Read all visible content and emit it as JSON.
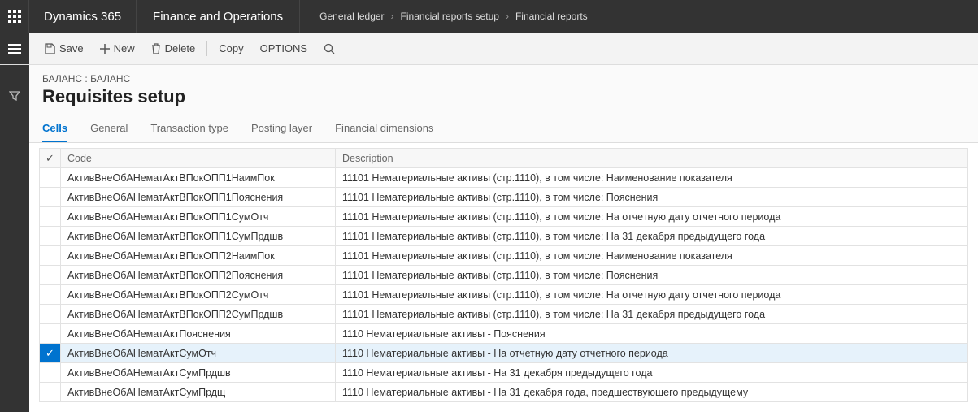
{
  "topbar": {
    "brand": "Dynamics 365",
    "module": "Finance and Operations",
    "breadcrumb": [
      "General ledger",
      "Financial reports setup",
      "Financial reports"
    ]
  },
  "toolbar": {
    "save": "Save",
    "new": "New",
    "delete": "Delete",
    "copy": "Copy",
    "options": "OPTIONS"
  },
  "heading": {
    "context": "БАЛАНС : БАЛАНС",
    "title": "Requisites setup"
  },
  "tabs": [
    "Cells",
    "General",
    "Transaction type",
    "Posting layer",
    "Financial dimensions"
  ],
  "active_tab_index": 0,
  "grid": {
    "columns": [
      "Code",
      "Description"
    ],
    "selected_index": 9,
    "rows": [
      {
        "code": "АктивВнеОбАНематАктВПокОПП1НаимПок",
        "desc": "11101 Нематериальные активы (стр.1110), в том числе: Наименование показателя"
      },
      {
        "code": "АктивВнеОбАНематАктВПокОПП1Пояснения",
        "desc": "11101 Нематериальные активы (стр.1110), в том числе: Пояснения"
      },
      {
        "code": "АктивВнеОбАНематАктВПокОПП1СумОтч",
        "desc": "11101 Нематериальные активы (стр.1110), в том числе: На отчетную дату отчетного периода"
      },
      {
        "code": "АктивВнеОбАНематАктВПокОПП1СумПрдшв",
        "desc": "11101 Нематериальные активы (стр.1110), в том числе: На 31 декабря предыдущего года"
      },
      {
        "code": "АктивВнеОбАНематАктВПокОПП2НаимПок",
        "desc": "11101 Нематериальные активы (стр.1110), в том числе: Наименование показателя"
      },
      {
        "code": "АктивВнеОбАНематАктВПокОПП2Пояснения",
        "desc": "11101 Нематериальные активы (стр.1110), в том числе: Пояснения"
      },
      {
        "code": "АктивВнеОбАНематАктВПокОПП2СумОтч",
        "desc": "11101 Нематериальные активы (стр.1110), в том числе: На отчетную дату отчетного периода"
      },
      {
        "code": "АктивВнеОбАНематАктВПокОПП2СумПрдшв",
        "desc": "11101 Нематериальные активы (стр.1110), в том числе: На 31 декабря предыдущего года"
      },
      {
        "code": "АктивВнеОбАНематАктПояснения",
        "desc": "1110 Нематериальные активы - Пояснения"
      },
      {
        "code": "АктивВнеОбАНематАктСумОтч",
        "desc": "1110 Нематериальные активы - На отчетную дату отчетного периода"
      },
      {
        "code": "АктивВнеОбАНематАктСумПрдшв",
        "desc": "1110 Нематериальные активы - На 31 декабря предыдущего года"
      },
      {
        "code": "АктивВнеОбАНематАктСумПрдщ",
        "desc": "1110 Нематериальные активы - На 31 декабря года, предшествующего предыдущему"
      }
    ]
  },
  "colors": {
    "header_bg": "#333333",
    "accent": "#0073cf",
    "selected_row_bg": "#e6f2fb",
    "toolbar_bg": "#f3f3f3",
    "main_bg": "#fafafa",
    "border": "#e2e2e2"
  }
}
